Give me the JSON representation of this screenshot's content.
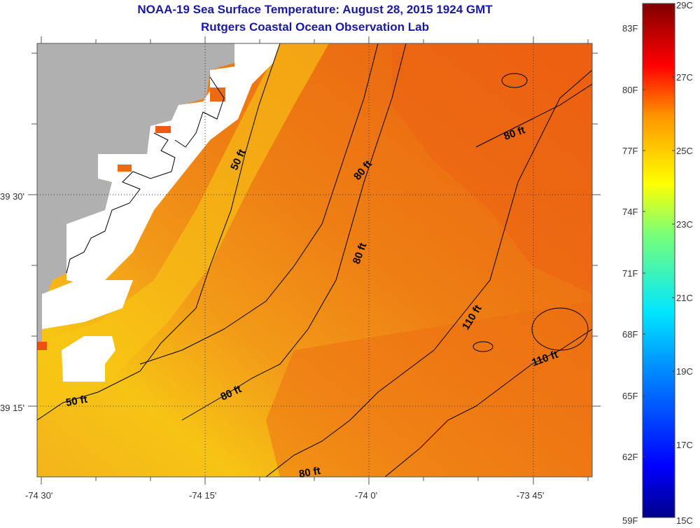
{
  "title": {
    "line1": "NOAA-19 Sea Surface Temperature:  August 28, 2015 1924 GMT",
    "line2": "Rutgers Coastal Ocean Observation Lab"
  },
  "axes": {
    "x_ticks": [
      "-74 30'",
      "-74 15'",
      "-74 0'",
      "-73 45'"
    ],
    "y_ticks": [
      "39 30'",
      "39 15'"
    ]
  },
  "contour_labels": [
    "50 ft",
    "50 ft",
    "80 ft",
    "80 ft",
    "80 ft",
    "80 ft",
    "80 ft",
    "110 ft",
    "110 ft"
  ],
  "colorbar": {
    "fahrenheit": [
      "83F",
      "80F",
      "77F",
      "74F",
      "71F",
      "68F",
      "65F",
      "62F",
      "59F"
    ],
    "celsius": [
      "29C",
      "27C",
      "25C",
      "23C",
      "21C",
      "19C",
      "17C",
      "15C"
    ]
  },
  "colors": {
    "title": "#1a1aa0",
    "land": "#b0b0b0",
    "cloud": "#ffffff",
    "warm": "#ee6a10",
    "cool": "#f5c010"
  }
}
